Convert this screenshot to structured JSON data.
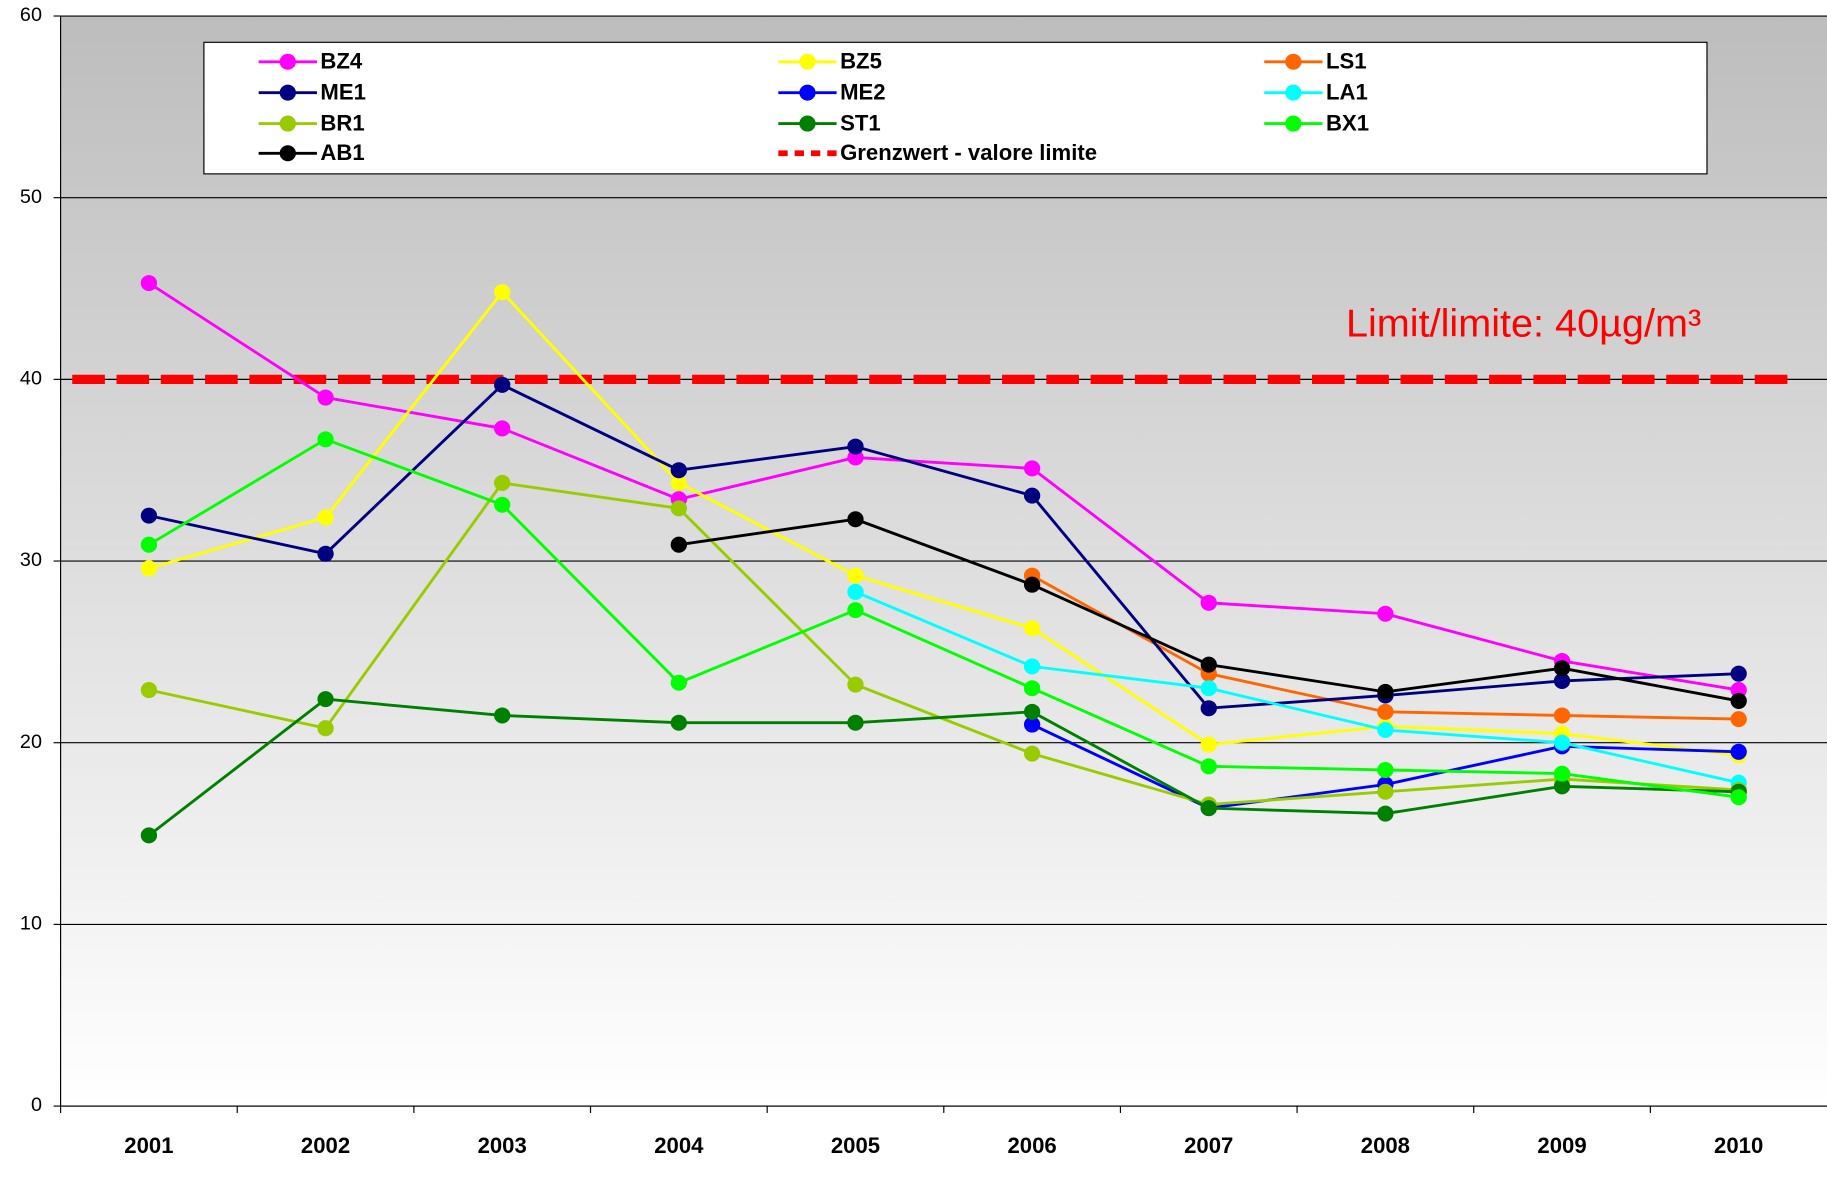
{
  "chart_data": {
    "type": "line",
    "categories": [
      "2001",
      "2002",
      "2003",
      "2004",
      "2005",
      "2006",
      "2007",
      "2008",
      "2009",
      "2010"
    ],
    "series": [
      {
        "name": "BZ4",
        "color": "#ff00ff",
        "values": [
          45.3,
          39.0,
          37.3,
          33.4,
          35.7,
          35.1,
          27.7,
          27.1,
          24.5,
          22.9
        ]
      },
      {
        "name": "BZ5",
        "color": "#ffff00",
        "values": [
          29.6,
          32.4,
          44.8,
          34.3,
          29.2,
          26.3,
          19.9,
          20.9,
          20.5,
          19.3
        ]
      },
      {
        "name": "LS1",
        "color": "#ff6600",
        "values": [
          null,
          null,
          null,
          null,
          null,
          29.2,
          23.8,
          21.7,
          21.5,
          21.3
        ]
      },
      {
        "name": "ME1",
        "color": "#000080",
        "values": [
          32.5,
          30.4,
          39.7,
          35.0,
          36.3,
          33.6,
          21.9,
          22.6,
          23.4,
          23.8
        ]
      },
      {
        "name": "ME2",
        "color": "#0000ff",
        "values": [
          null,
          null,
          null,
          null,
          null,
          21.0,
          16.4,
          17.7,
          19.8,
          19.5
        ]
      },
      {
        "name": "LA1",
        "color": "#00ffff",
        "values": [
          null,
          null,
          null,
          null,
          28.3,
          24.2,
          23.0,
          20.7,
          20.0,
          17.8
        ]
      },
      {
        "name": "BR1",
        "color": "#99cc00",
        "values": [
          22.9,
          20.8,
          34.3,
          32.9,
          23.2,
          19.4,
          16.6,
          17.3,
          18.0,
          17.4
        ]
      },
      {
        "name": "ST1",
        "color": "#008000",
        "values": [
          14.9,
          22.4,
          21.5,
          21.1,
          21.1,
          21.7,
          16.4,
          16.1,
          17.6,
          17.3
        ]
      },
      {
        "name": "BX1",
        "color": "#00ff00",
        "values": [
          30.9,
          36.7,
          33.1,
          23.3,
          27.3,
          23.0,
          18.7,
          18.5,
          18.3,
          17.0
        ]
      },
      {
        "name": "AB1",
        "color": "#000000",
        "values": [
          null,
          null,
          null,
          30.9,
          32.3,
          28.7,
          24.3,
          22.8,
          24.1,
          22.3
        ]
      }
    ],
    "threshold": {
      "name": "Grenzwert - valore limite",
      "value": 40,
      "color": "#ff0000"
    },
    "annotation": "Limit/limite: 40µg/m³",
    "ylim": [
      0,
      60
    ],
    "yticks": [
      0,
      10,
      20,
      30,
      40,
      50,
      60
    ],
    "grid": true
  }
}
